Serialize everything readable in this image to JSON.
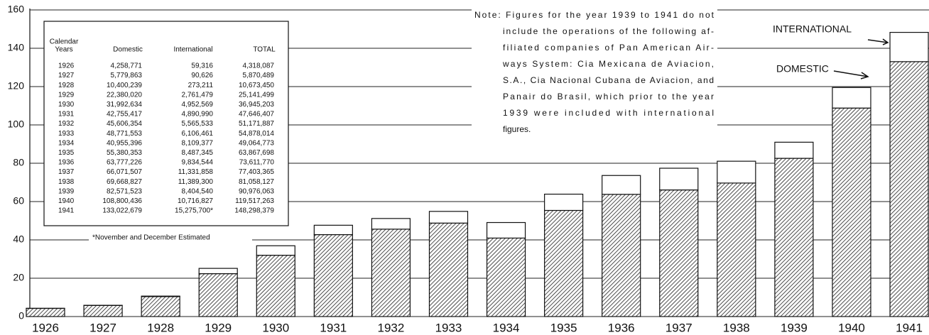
{
  "chart_data": {
    "type": "stacked_bar",
    "categories": [
      "1926",
      "1927",
      "1928",
      "1929",
      "1930",
      "1931",
      "1932",
      "1933",
      "1934",
      "1935",
      "1936",
      "1937",
      "1938",
      "1939",
      "1940",
      "1941"
    ],
    "series": [
      {
        "name": "DOMESTIC",
        "color": "hatch",
        "values": [
          4.258771,
          5.779863,
          10.400239,
          22.38002,
          31.992634,
          42.755417,
          45.606354,
          48.771553,
          40.955396,
          55.380353,
          63.777226,
          66.071507,
          69.668827,
          82.571523,
          108.800436,
          133.022679
        ]
      },
      {
        "name": "INTERNATIONAL",
        "color": "#ffffff",
        "values": [
          0.059316,
          0.090626,
          0.273211,
          2.761479,
          4.952569,
          4.89099,
          5.565533,
          6.106461,
          8.109377,
          8.487345,
          9.834544,
          11.331858,
          11.3893,
          8.40454,
          10.716827,
          15.2757
        ]
      }
    ],
    "ylim": [
      0,
      160
    ],
    "yticks": [
      0,
      20,
      40,
      60,
      80,
      100,
      120,
      140,
      160
    ],
    "grid": true,
    "table": {
      "header": [
        [
          "Calendar",
          "Years"
        ],
        [
          "Domestic"
        ],
        [
          "International"
        ],
        [
          "TOTAL"
        ]
      ],
      "rows": [
        [
          "1926",
          "4,258,771",
          "59,316",
          "4,318,087"
        ],
        [
          "1927",
          "5,779,863",
          "90,626",
          "5,870,489"
        ],
        [
          "1928",
          "10,400,239",
          "273,211",
          "10,673,450"
        ],
        [
          "1929",
          "22,380,020",
          "2,761,479",
          "25,141,499"
        ],
        [
          "1930",
          "31,992,634",
          "4,952,569",
          "36,945,203"
        ],
        [
          "1931",
          "42,755,417",
          "4,890,990",
          "47,646,407"
        ],
        [
          "1932",
          "45,606,354",
          "5,565,533",
          "51,171,887"
        ],
        [
          "1933",
          "48,771,553",
          "6,106,461",
          "54,878,014"
        ],
        [
          "1934",
          "40,955,396",
          "8,109,377",
          "49,064,773"
        ],
        [
          "1935",
          "55,380,353",
          "8,487,345",
          "63,867,698"
        ],
        [
          "1936",
          "63,777,226",
          "9,834,544",
          "73,611,770"
        ],
        [
          "1937",
          "66,071,507",
          "11,331,858",
          "77,403,365"
        ],
        [
          "1938",
          "69,668,827",
          "11,389,300",
          "81,058,127"
        ],
        [
          "1939",
          "82,571,523",
          "8,404,540",
          "90,976,063"
        ],
        [
          "1940",
          "108,800,436",
          "10,716,827",
          "119,517,263"
        ],
        [
          "1941",
          "133,022,679",
          "15,275,700*",
          "148,298,379"
        ]
      ],
      "footnote": "*November and December Estimated"
    },
    "note": [
      "Note: Figures for the year 1939 to 1941 do not",
      "include the operations of the following af-",
      "filiated companies of Pan American Air-",
      "ways System: Cia Mexicana de Aviacion,",
      "S.A., Cia Nacional Cubana de Aviacion, and",
      "Panair do Brasil, which prior to the year",
      "1939 were included with international",
      "figures."
    ]
  }
}
